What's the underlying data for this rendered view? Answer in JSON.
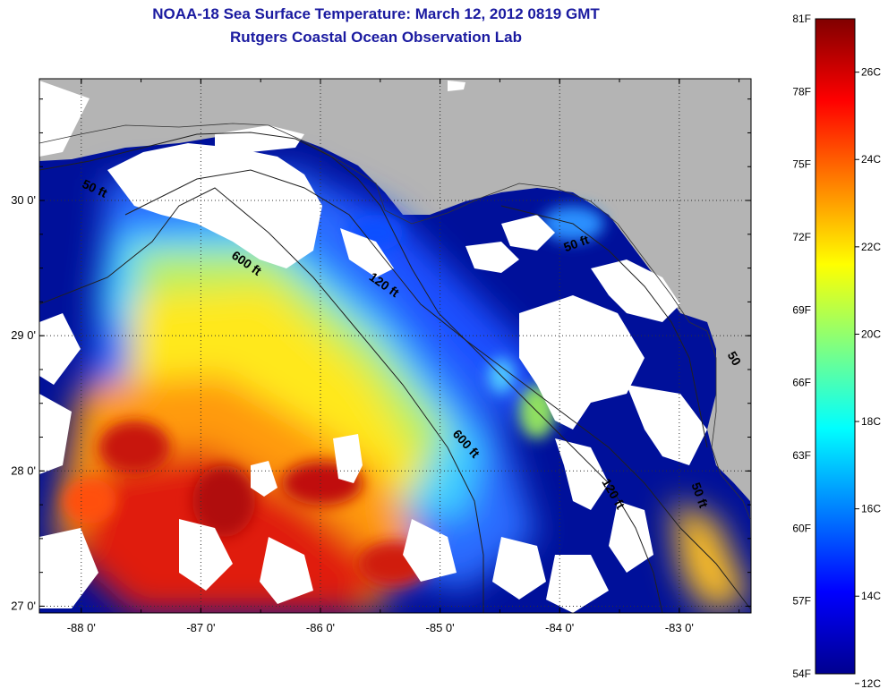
{
  "title_line1": "NOAA-18 Sea Surface Temperature:  March 12, 2012 0819 GMT",
  "title_line2": "Rutgers Coastal Ocean Observation Lab",
  "map": {
    "x_ticks": [
      {
        "lon": -88,
        "label": "-88 0'"
      },
      {
        "lon": -87,
        "label": "-87 0'"
      },
      {
        "lon": -86,
        "label": "-86 0'"
      },
      {
        "lon": -85,
        "label": "-85 0'"
      },
      {
        "lon": -84,
        "label": "-84 0'"
      },
      {
        "lon": -83,
        "label": "-83 0'"
      }
    ],
    "y_ticks": [
      {
        "lat": 30,
        "label": "30 0'"
      },
      {
        "lat": 29,
        "label": "29 0'"
      },
      {
        "lat": 28,
        "label": "28 0'"
      },
      {
        "lat": 27,
        "label": "27 0'"
      }
    ],
    "lon_range": [
      -88.35,
      -82.4
    ],
    "lat_range": [
      26.95,
      30.9
    ],
    "isobath_labels": [
      {
        "text": "50 ft",
        "lon": -88.0,
        "lat": 30.1,
        "rot": 25
      },
      {
        "text": "600 ft",
        "lon": -86.75,
        "lat": 29.58,
        "rot": 35
      },
      {
        "text": "120 ft",
        "lon": -85.6,
        "lat": 29.42,
        "rot": 35
      },
      {
        "text": "50 ft",
        "lon": -83.95,
        "lat": 29.62,
        "rot": -20
      },
      {
        "text": "600 ft",
        "lon": -84.9,
        "lat": 28.27,
        "rot": 48
      },
      {
        "text": "120 ft",
        "lon": -83.65,
        "lat": 27.92,
        "rot": 60
      },
      {
        "text": "50 ft",
        "lon": -82.9,
        "lat": 27.9,
        "rot": 70
      },
      {
        "text": "50",
        "lon": -82.6,
        "lat": 28.86,
        "rot": 60
      }
    ]
  },
  "colorbar": {
    "fahrenheit_labels": [
      "81F",
      "78F",
      "75F",
      "72F",
      "69F",
      "66F",
      "63F",
      "60F",
      "57F",
      "54F"
    ],
    "celsius_labels": [
      "26C",
      "24C",
      "22C",
      "20C",
      "18C",
      "16C",
      "14C",
      "12C"
    ],
    "f_range": [
      54,
      81
    ],
    "c_values": [
      26,
      24,
      22,
      20,
      18,
      16,
      14,
      12
    ],
    "colors": [
      "#00008f",
      "#0000ff",
      "#0080ff",
      "#00ffff",
      "#80ff80",
      "#ffff00",
      "#ff8000",
      "#ff0000",
      "#800000"
    ]
  },
  "colors": {
    "land": "#b4b4b4",
    "no_data": "#ffffff",
    "title": "#1a1aa0"
  }
}
